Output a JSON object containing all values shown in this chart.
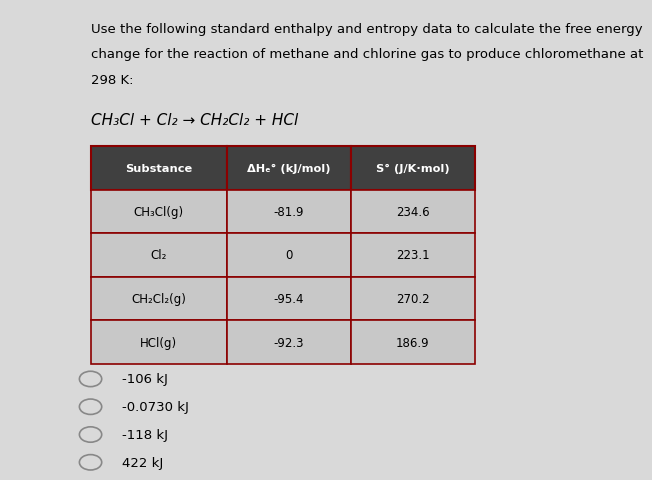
{
  "title_line1": "Use the following standard enthalpy and entropy data to calculate the free energy",
  "title_line2": "change for the reaction of methane and chlorine gas to produce chloromethane at",
  "title_line3": "298 K:",
  "equation": "CH₃Cl + Cl₂ → CH₂Cl₂ + HCl",
  "table_header": [
    "Substance",
    "ΔHₑ° (kJ/mol)",
    "S° (J/K·mol)"
  ],
  "table_rows": [
    [
      "CH₃Cl(g)",
      "-81.9",
      "234.6"
    ],
    [
      "Cl₂",
      "0",
      "223.1"
    ],
    [
      "CH₂Cl₂(g)",
      "-95.4",
      "270.2"
    ],
    [
      "HCl(g)",
      "-92.3",
      "186.9"
    ]
  ],
  "choices": [
    "-106 kJ",
    "-0.0730 kJ",
    "-118 kJ",
    "422 kJ"
  ],
  "bg_color": "#d9d9d9",
  "table_header_bg": "#404040",
  "table_header_fg": "#ffffff",
  "table_row_bg": "#c8c8c8",
  "table_border_color": "#8b0000",
  "text_color": "#000000",
  "choice_circle_color": "#d9d9d9",
  "choice_circle_edge": "#888888"
}
